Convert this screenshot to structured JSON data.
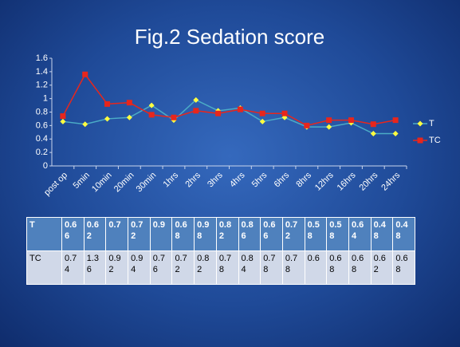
{
  "chart_data": {
    "type": "line",
    "title": "Fig.2  Sedation score",
    "categories": [
      "post op",
      "5min",
      "10min",
      "20min",
      "30min",
      "1hrs",
      "2hrs",
      "3hrs",
      "4hrs",
      "5hrs",
      "6hrs",
      "8hrs",
      "12hrs",
      "16hrs",
      "20hrs",
      "24hrs"
    ],
    "series": [
      {
        "name": "T",
        "color": "#4bacc6",
        "marker_color": "#ffff40",
        "marker": "diamond",
        "values": [
          0.66,
          0.62,
          0.7,
          0.72,
          0.9,
          0.68,
          0.98,
          0.82,
          0.86,
          0.66,
          0.72,
          0.58,
          0.58,
          0.64,
          0.48,
          0.48
        ]
      },
      {
        "name": "TC",
        "color": "#e8261c",
        "marker_color": "#e8261c",
        "marker": "square",
        "values": [
          0.74,
          1.36,
          0.92,
          0.94,
          0.76,
          0.72,
          0.82,
          0.78,
          0.84,
          0.78,
          0.78,
          0.6,
          0.68,
          0.68,
          0.62,
          0.68
        ]
      }
    ],
    "ylim": [
      0,
      1.6
    ],
    "yticks": [
      0,
      0.2,
      0.4,
      0.6,
      0.8,
      1,
      1.2,
      1.4,
      1.6
    ],
    "legend": "right",
    "data_table": true
  }
}
